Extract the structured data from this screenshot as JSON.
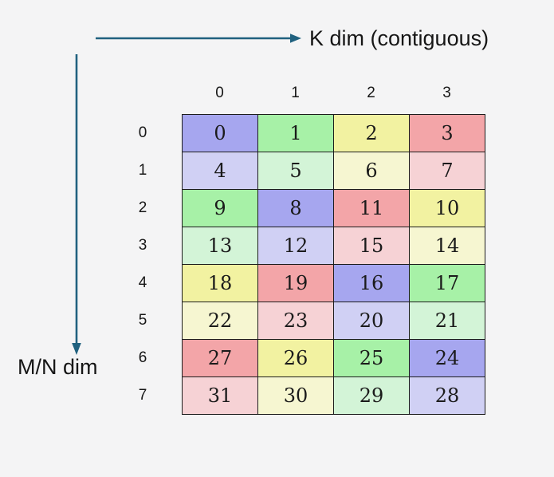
{
  "background_color": "#f4f4f5",
  "arrow_color": "#20617f",
  "labels": {
    "k_dim": "K dim (contiguous)",
    "mn_dim": "M/N dim"
  },
  "palette": {
    "purple_dark": "#a6a6ef",
    "purple_light": "#d0d0f4",
    "green_dark": "#a7f1a7",
    "green_light": "#d3f4d7",
    "yellow_dark": "#f2f2a1",
    "yellow_light": "#f6f6d1",
    "red_dark": "#f3a5a8",
    "red_light": "#f6d2d5"
  },
  "grid": {
    "col_headers": [
      "0",
      "1",
      "2",
      "3"
    ],
    "row_headers": [
      "0",
      "1",
      "2",
      "3",
      "4",
      "5",
      "6",
      "7"
    ],
    "rows": [
      {
        "cells": [
          {
            "value": "0",
            "color": "purple_dark"
          },
          {
            "value": "1",
            "color": "green_dark"
          },
          {
            "value": "2",
            "color": "yellow_dark"
          },
          {
            "value": "3",
            "color": "red_dark"
          }
        ]
      },
      {
        "cells": [
          {
            "value": "4",
            "color": "purple_light"
          },
          {
            "value": "5",
            "color": "green_light"
          },
          {
            "value": "6",
            "color": "yellow_light"
          },
          {
            "value": "7",
            "color": "red_light"
          }
        ]
      },
      {
        "cells": [
          {
            "value": "9",
            "color": "green_dark"
          },
          {
            "value": "8",
            "color": "purple_dark"
          },
          {
            "value": "11",
            "color": "red_dark"
          },
          {
            "value": "10",
            "color": "yellow_dark"
          }
        ]
      },
      {
        "cells": [
          {
            "value": "13",
            "color": "green_light"
          },
          {
            "value": "12",
            "color": "purple_light"
          },
          {
            "value": "15",
            "color": "red_light"
          },
          {
            "value": "14",
            "color": "yellow_light"
          }
        ]
      },
      {
        "cells": [
          {
            "value": "18",
            "color": "yellow_dark"
          },
          {
            "value": "19",
            "color": "red_dark"
          },
          {
            "value": "16",
            "color": "purple_dark"
          },
          {
            "value": "17",
            "color": "green_dark"
          }
        ]
      },
      {
        "cells": [
          {
            "value": "22",
            "color": "yellow_light"
          },
          {
            "value": "23",
            "color": "red_light"
          },
          {
            "value": "20",
            "color": "purple_light"
          },
          {
            "value": "21",
            "color": "green_light"
          }
        ]
      },
      {
        "cells": [
          {
            "value": "27",
            "color": "red_dark"
          },
          {
            "value": "26",
            "color": "yellow_dark"
          },
          {
            "value": "25",
            "color": "green_dark"
          },
          {
            "value": "24",
            "color": "purple_dark"
          }
        ]
      },
      {
        "cells": [
          {
            "value": "31",
            "color": "red_light"
          },
          {
            "value": "30",
            "color": "yellow_light"
          },
          {
            "value": "29",
            "color": "green_light"
          },
          {
            "value": "28",
            "color": "purple_light"
          }
        ]
      }
    ]
  }
}
